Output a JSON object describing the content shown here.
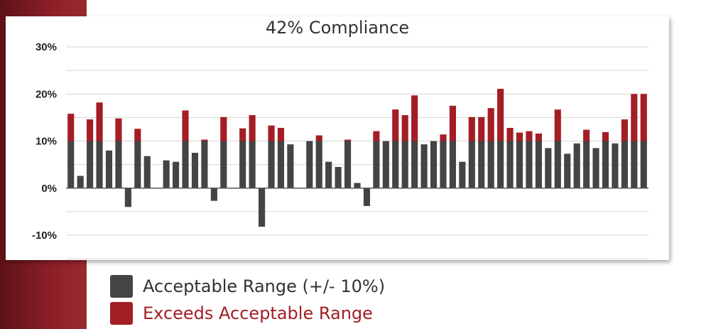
{
  "chart_data": {
    "type": "bar",
    "title": "42% Compliance",
    "xlabel": "",
    "ylabel": "",
    "ylim": [
      -10,
      30
    ],
    "yticks": [
      30,
      20,
      10,
      0,
      -10
    ],
    "ytick_labels": [
      "30%",
      "20%",
      "10%",
      "0%",
      "-10%"
    ],
    "grid": true,
    "legend_position": "bottom-left",
    "series": [
      {
        "name": "Acceptable Range (+/- 10%)",
        "color": "#444444"
      },
      {
        "name": "Exceeds Acceptable Range",
        "color": "#a31d24"
      }
    ],
    "values": [
      15.8,
      2.6,
      14.6,
      18.2,
      8.0,
      14.8,
      -4.0,
      12.6,
      6.8,
      null,
      5.9,
      5.6,
      16.5,
      7.5,
      10.3,
      -2.7,
      15.1,
      null,
      12.7,
      15.5,
      -8.2,
      13.3,
      12.8,
      9.3,
      null,
      10.0,
      11.2,
      5.6,
      4.5,
      10.3,
      1.1,
      -3.8,
      12.1,
      10.0,
      16.7,
      15.5,
      19.7,
      9.3,
      10.0,
      11.4,
      17.5,
      5.6,
      15.1,
      15.1,
      17.0,
      21.1,
      12.8,
      11.8,
      12.1,
      11.6,
      8.5,
      16.7,
      7.3,
      9.5,
      12.4,
      8.5,
      11.9,
      9.5,
      14.6,
      20.0,
      20.0
    ],
    "threshold": 10
  },
  "legend": {
    "items": [
      {
        "label": "Acceptable Range (+/- 10%)",
        "color": "#444444",
        "text_color": "#333333"
      },
      {
        "label": "Exceeds Acceptable Range",
        "color": "#a31d24",
        "text_color": "#a31d24"
      }
    ]
  },
  "theme": {
    "band_color": "#8a1e26",
    "grid_color": "#d6d6d6"
  }
}
